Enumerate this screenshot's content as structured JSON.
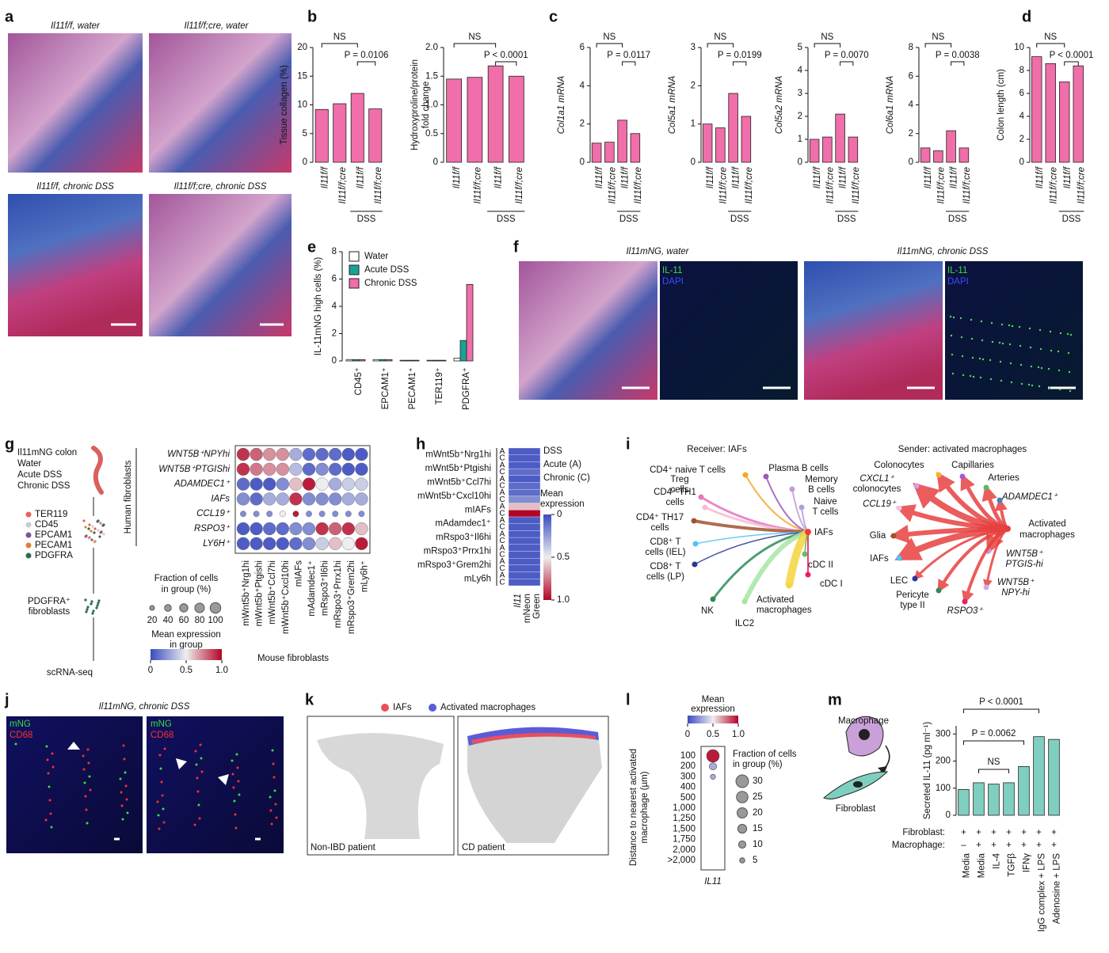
{
  "panel_labels": [
    "a",
    "b",
    "c",
    "d",
    "e",
    "f",
    "g",
    "h",
    "i",
    "j",
    "k",
    "l",
    "m"
  ],
  "a": {
    "captions": [
      "Il11f/f, water",
      "Il11f/f;cre, water",
      "Il11f/f, chronic DSS",
      "Il11f/f;cre, chronic DSS"
    ]
  },
  "bar_panels": [
    {
      "ylabel": "Tissue collagen (%)",
      "ylim": [
        0,
        20
      ],
      "yticks": [
        0,
        5,
        10,
        15,
        20
      ],
      "categories": [
        "Il11f/f",
        "Il11f/f;cre",
        "Il11f/f",
        "Il11f/f;cre"
      ],
      "values": [
        9.2,
        10.2,
        12.0,
        9.3
      ],
      "color": "#f06ea9",
      "group": "DSS",
      "annotations": [
        "NS",
        "P = 0.0106"
      ]
    },
    {
      "ylabel": [
        "Hydroxyproline/protein",
        "fold change"
      ],
      "ylim": [
        0,
        2
      ],
      "yticks": [
        0,
        0.5,
        {
          "value": 1,
          "label": "1.0"
        },
        1.5,
        {
          "value": 2,
          "label": "2.0"
        }
      ],
      "categories": [
        "Il11f/f",
        "Il11f/f;cre",
        "Il11f/f",
        "Il11f/f;cre"
      ],
      "values": [
        1.45,
        1.48,
        1.68,
        1.5
      ],
      "color": "#f06ea9",
      "group": "DSS",
      "annotations": [
        "NS",
        "P < 0.0001"
      ]
    },
    {
      "ylabel": "Col1a1 mRNA",
      "ylim": [
        0,
        6
      ],
      "yticks": [
        0,
        2,
        4,
        6
      ],
      "categories": [
        "Il11f/f",
        "Il11f/f;cre",
        "Il11f/f",
        "Il11f/f;cre"
      ],
      "values": [
        1.0,
        1.05,
        2.2,
        1.5
      ],
      "color": "#f06ea9",
      "group": "DSS",
      "annotations": [
        "NS",
        "P = 0.0117"
      ]
    },
    {
      "ylabel": "Col5a1 mRNA",
      "ylim": [
        0,
        3
      ],
      "yticks": [
        0,
        1,
        2,
        3
      ],
      "categories": [
        "Il11f/f",
        "Il11f/f;cre",
        "Il11f/f",
        "Il11f/f;cre"
      ],
      "values": [
        1.0,
        0.9,
        1.8,
        1.2
      ],
      "color": "#f06ea9",
      "group": "DSS",
      "annotations": [
        "NS",
        "P = 0.0199"
      ]
    },
    {
      "ylabel": "Col5a2 mRNA",
      "ylim": [
        0,
        5
      ],
      "yticks": [
        0,
        1,
        2,
        3,
        4,
        5
      ],
      "categories": [
        "Il11f/f",
        "Il11f/f;cre",
        "Il11f/f",
        "Il11f/f;cre"
      ],
      "values": [
        1.0,
        1.1,
        2.1,
        1.1
      ],
      "color": "#f06ea9",
      "group": "DSS",
      "annotations": [
        "NS",
        "P = 0.0070"
      ]
    },
    {
      "ylabel": "Col6a1 mRNA",
      "ylim": [
        0,
        8
      ],
      "yticks": [
        0,
        2,
        4,
        6,
        8
      ],
      "categories": [
        "Il11f/f",
        "Il11f/f;cre",
        "Il11f/f",
        "Il11f/f;cre"
      ],
      "values": [
        1.0,
        0.8,
        2.2,
        1.0
      ],
      "color": "#f06ea9",
      "group": "DSS",
      "annotations": [
        "NS",
        "P = 0.0038"
      ]
    },
    {
      "ylabel": "Colon length (cm)",
      "ylim": [
        0,
        10
      ],
      "yticks": [
        0,
        2,
        4,
        6,
        8,
        10
      ],
      "categories": [
        "Il11f/f",
        "Il11f/f;cre",
        "Il11f/f",
        "Il11f/f;cre"
      ],
      "values": [
        9.2,
        8.6,
        7.0,
        8.4
      ],
      "color": "#f06ea9",
      "group": "DSS",
      "annotations": [
        "NS",
        "P < 0.0001"
      ]
    }
  ],
  "e": {
    "ylabel": "IL-11mNG high cells (%)",
    "ylim": [
      0,
      8
    ],
    "yticks": [
      0,
      2,
      4,
      6,
      8
    ],
    "categories": [
      "CD45⁺",
      "EPCAM1⁺",
      "PECAM1⁺",
      "TER119⁺",
      "PDGFRA⁺"
    ],
    "series": [
      {
        "name": "Water",
        "color": "#ffffff",
        "values": [
          0.1,
          0.1,
          0.05,
          0.05,
          0.2
        ]
      },
      {
        "name": "Acute DSS",
        "color": "#1aa394",
        "values": [
          0.1,
          0.1,
          0.05,
          0.05,
          1.5
        ]
      },
      {
        "name": "Chronic DSS",
        "color": "#f06ea9",
        "values": [
          0.1,
          0.1,
          0.05,
          0.05,
          5.6
        ]
      }
    ]
  },
  "f": {
    "captions": [
      "Il11mNG, water",
      "Il11mNG, chronic DSS"
    ],
    "stains": [
      "IL-11",
      "DAPI"
    ]
  },
  "g": {
    "schematic": [
      "Il11mNG colon",
      "Water",
      "Acute DSS",
      "Chronic DSS"
    ],
    "populations": [
      {
        "name": "TER119",
        "color": "#e86060"
      },
      {
        "name": "CD45",
        "color": "#cccccc"
      },
      {
        "name": "EPCAM1",
        "color": "#7b52a0"
      },
      {
        "name": "PECAM1",
        "color": "#e08030"
      },
      {
        "name": "PDGFRA",
        "color": "#2e6b4e"
      }
    ],
    "sorted": [
      "PDGFRA⁺",
      "fibroblasts"
    ],
    "method": "scRNA-seq",
    "row_title": "Human fibroblasts",
    "column_title": "Mouse fibroblasts",
    "rows": [
      "WNT5B⁺NPYhi",
      "WNT5B⁺PTGIShi",
      "ADAMDEC1⁺",
      "IAFs",
      "CCL19⁺",
      "RSPO3⁺",
      "LY6H⁺"
    ],
    "columns": [
      "mWnt5b⁺Nrg1hi",
      "mWnt5b⁺Ptgishi",
      "mWnt5b⁺Ccl7hi",
      "mWnt5b⁺Cxcl10hi",
      "mIAFs",
      "mAdamdec1⁺",
      "mRspo3⁺Il6hi",
      "mRspo3⁺Prrx1hi",
      "mRspo3⁺Grem2hi",
      "mLy6h⁺"
    ],
    "expression": [
      [
        0.9,
        0.8,
        0.7,
        0.7,
        0.3,
        0.1,
        0.1,
        0.1,
        0.05,
        0.05
      ],
      [
        0.9,
        0.75,
        0.7,
        0.7,
        0.35,
        0.1,
        0.2,
        0.1,
        0.05,
        0.05
      ],
      [
        0.1,
        0.05,
        0.05,
        0.2,
        0.6,
        0.95,
        0.5,
        0.3,
        0.4,
        0.4
      ],
      [
        0.2,
        0.1,
        0.3,
        0.3,
        0.9,
        0.2,
        0.2,
        0.2,
        0.3,
        0.3
      ],
      [
        0.2,
        0.2,
        0.2,
        0.5,
        0.95,
        0.2,
        0.2,
        0.2,
        0.2,
        0.2
      ],
      [
        0.05,
        0.05,
        0.1,
        0.1,
        0.2,
        0.2,
        0.9,
        0.8,
        0.9,
        0.6
      ],
      [
        0.05,
        0.05,
        0.05,
        0.05,
        0.1,
        0.2,
        0.4,
        0.6,
        0.5,
        0.95
      ]
    ],
    "row_fraction": [
      90,
      90,
      90,
      90,
      20,
      90,
      90
    ],
    "size_title": [
      "Fraction of cells",
      "in group (%)"
    ],
    "size_ticks": [
      20,
      40,
      60,
      80,
      100
    ],
    "color_title": [
      "Mean expression",
      "in group"
    ],
    "color_ticks": [
      0,
      0.5,
      {
        "value": 1,
        "label": "1.0"
      }
    ]
  },
  "h": {
    "rows": [
      "mWnt5b⁺Nrg1hi",
      "mWnt5b⁺Ptgishi",
      "mWnt5b⁺Ccl7hi",
      "mWnt5b⁺Cxcl10hi",
      "mIAFs",
      "mAdamdec1⁺",
      "mRspo3⁺Il6hi",
      "mRspo3⁺Prrx1hi",
      "mRspo3⁺Grem2hi",
      "mLy6h"
    ],
    "conditions": [
      "A",
      "C"
    ],
    "values": [
      [
        0.05,
        0.05
      ],
      [
        0.05,
        0.1
      ],
      [
        0.05,
        0.1
      ],
      [
        0.1,
        0.2
      ],
      [
        0.6,
        1.0
      ],
      [
        0.05,
        0.05
      ],
      [
        0.05,
        0.05
      ],
      [
        0.05,
        0.05
      ],
      [
        0.05,
        0.05
      ],
      [
        0.05,
        0.05
      ]
    ],
    "column": [
      "Il11",
      "mNeon",
      "Green"
    ],
    "legend": [
      "DSS",
      "Acute (A)",
      "Chronic (C)"
    ],
    "color_title": [
      "Mean",
      "expression"
    ],
    "color_ticks": [
      0,
      0.5,
      {
        "value": 1,
        "label": "1.0"
      }
    ]
  },
  "i": {
    "receiver": {
      "title": "Receiver: IAFs",
      "hub": [
        "IAFs"
      ],
      "nodes": [
        [
          "CD4⁺ naive T cells"
        ],
        [
          "Plasma B cells"
        ],
        [
          "Treg",
          "cells"
        ],
        [
          "CD4⁺ TH1",
          "cells"
        ],
        [
          "Memory",
          "B cells"
        ],
        [
          "Naive",
          "T cells"
        ],
        [
          "CD4⁺ TH17",
          "cells"
        ],
        [
          "CD8⁺ T",
          "cells (IEL)"
        ],
        [
          "CD8⁺ T",
          "cells (LP)"
        ],
        [
          "NK"
        ],
        [
          "ILC2"
        ],
        [
          "Activated",
          "macrophages"
        ],
        [
          "cDC I"
        ],
        [
          "cDC II"
        ]
      ]
    },
    "sender": {
      "title": "Sender: activated macrophages",
      "hub": [
        "Activated",
        "macrophages"
      ],
      "nodes": [
        [
          "Colonocytes"
        ],
        [
          "Capillaries"
        ],
        [
          "Arteries"
        ],
        [
          "CXCL1⁺",
          "colonocytes"
        ],
        [
          "CCL19⁺"
        ],
        [
          "ADAMDEC1⁺"
        ],
        [
          "Glia"
        ],
        [
          "IAFs"
        ],
        [
          "LEC"
        ],
        [
          "WNT5B⁺",
          "PTGIS-hi"
        ],
        [
          "Pericyte",
          "type II"
        ],
        [
          "RSPO3⁺"
        ],
        [
          "WNT5B⁺",
          "NPY-hi"
        ]
      ]
    }
  },
  "j": {
    "caption": "Il11mNG, chronic DSS",
    "stains": [
      "mNG",
      "CD68"
    ]
  },
  "k": {
    "legend": [
      {
        "name": "IAFs",
        "color": "#e8505b"
      },
      {
        "name": "Activated macrophages",
        "color": "#5b5bd8"
      }
    ],
    "captions": [
      "Non-IBD patient",
      "CD patient"
    ]
  },
  "l": {
    "color_title": [
      "Mean",
      "expression"
    ],
    "color_ticks": [
      0,
      0.5,
      {
        "value": 1,
        "label": "1.0"
      }
    ],
    "ylabel": [
      "Distance to nearest activated",
      "macrophage (µm)"
    ],
    "rows": [
      "100",
      "200",
      "300",
      "400",
      "500",
      "1,000",
      "1,250",
      "1,500",
      "1,750",
      "2,000",
      ">2,000"
    ],
    "gene": "IL11",
    "expression": [
      0.95,
      0.3,
      0.3,
      null,
      null,
      null,
      null,
      null,
      null,
      null,
      null
    ],
    "fraction": [
      30,
      10,
      5,
      null,
      null,
      null,
      null,
      null,
      null,
      null,
      null
    ],
    "size_title": [
      "Fraction of cells",
      "in group (%)"
    ],
    "size_ticks": [
      30,
      25,
      20,
      15,
      10,
      5
    ]
  },
  "m": {
    "schematic": [
      "Macrophage",
      "Fibroblast"
    ],
    "ylabel": "Secreted IL-11 (pg ml⁻¹)",
    "ylim": [
      0,
      330
    ],
    "yticks": [
      0,
      100,
      200,
      300
    ],
    "color": "#7fcfc0",
    "categories": [
      "Media",
      "Media",
      "IL-4",
      "TGFβ",
      "IFNγ",
      "IgG complex + LPS",
      "Adenosine + LPS"
    ],
    "values": [
      95,
      120,
      115,
      120,
      180,
      290,
      280
    ],
    "rows": [
      {
        "name": "Fibroblast:",
        "values": [
          "+",
          "+",
          "+",
          "+",
          "+",
          "+",
          "+"
        ]
      },
      {
        "name": "Macrophage:",
        "values": [
          "–",
          "+",
          "+",
          "+",
          "+",
          "+",
          "+"
        ]
      }
    ],
    "annotations": [
      "P < 0.0001",
      "P = 0.0062",
      "NS"
    ]
  }
}
